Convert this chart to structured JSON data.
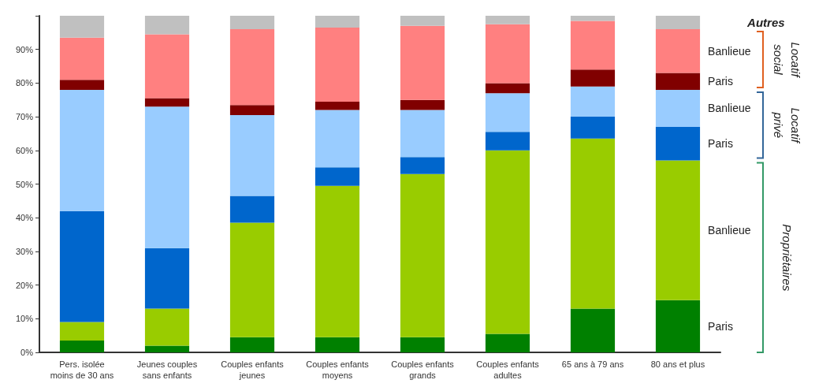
{
  "chart_data": {
    "type": "bar",
    "stacked": true,
    "categories": [
      "Pers. isolée\nmoins de 30 ans",
      "Jeunes couples\nsans enfants",
      "Couples enfants\njeunes",
      "Couples enfants\nmoyens",
      "Couples enfants\ngrands",
      "Couples enfants\nadultes",
      "65 ans à 79 ans",
      "80 ans et plus"
    ],
    "series": [
      {
        "name": "Paris",
        "color": "#008000",
        "values": [
          3.5,
          2,
          4.5,
          4.5,
          4.5,
          5.5,
          13,
          15.5
        ]
      },
      {
        "name": "Banlieue",
        "color": "#99cc00",
        "values": [
          5.5,
          11,
          34,
          45,
          48.5,
          54.5,
          50.5,
          41.5
        ]
      },
      {
        "name": "Paris",
        "color": "#0066cc",
        "values": [
          33,
          18,
          8,
          5.5,
          5,
          5.5,
          6.5,
          10
        ]
      },
      {
        "name": "Banlieue",
        "color": "#99ccff",
        "values": [
          36,
          42,
          24,
          17,
          14,
          11.5,
          9,
          11
        ]
      },
      {
        "name": "Paris",
        "color": "#800000",
        "values": [
          3,
          2.5,
          3,
          2.5,
          3,
          3,
          5,
          5
        ]
      },
      {
        "name": "Banlieue",
        "color": "#ff8080",
        "values": [
          12.5,
          19,
          22.5,
          22,
          22,
          17.5,
          14.5,
          13
        ]
      },
      {
        "name": "Autres",
        "color": "#c0c0c0",
        "values": [
          6.5,
          5.5,
          4,
          3.5,
          3,
          2.5,
          1.5,
          4
        ]
      }
    ],
    "annotations": [
      "Propriétaires",
      "Locatif\nprivé",
      "Locatif\nsocial"
    ],
    "ylim": [
      0,
      100
    ],
    "yticks": [
      {
        "value": 0,
        "label": "0%"
      },
      {
        "value": 10,
        "label": "10%"
      },
      {
        "value": 20,
        "label": "20%"
      },
      {
        "value": 30,
        "label": "30%"
      },
      {
        "value": 40,
        "label": "40%"
      },
      {
        "value": 50,
        "label": "50%"
      },
      {
        "value": 60,
        "label": "60%"
      },
      {
        "value": 70,
        "label": "70%"
      },
      {
        "value": 80,
        "label": "80%"
      },
      {
        "value": 90,
        "label": "90%"
      },
      {
        "value": 100,
        "label": null
      }
    ],
    "grid": false,
    "legend": false
  }
}
